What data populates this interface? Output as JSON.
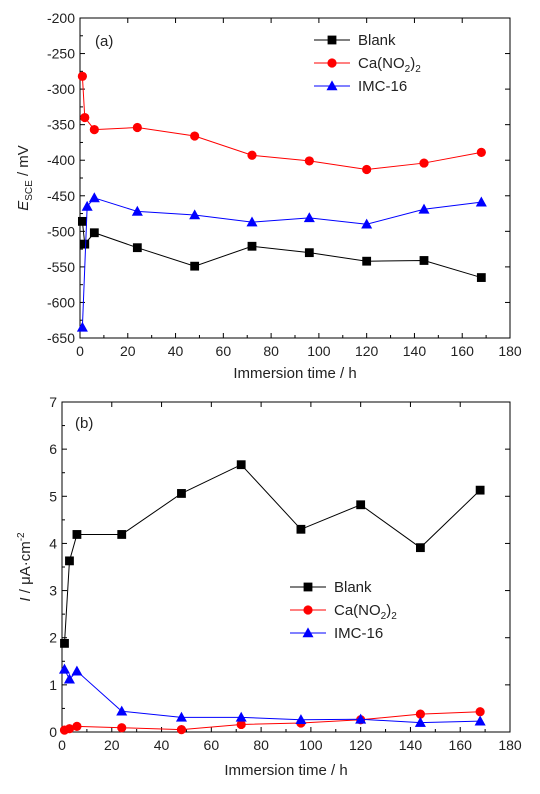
{
  "chart_data": [
    {
      "type": "line",
      "panel_label": "(a)",
      "xlabel": "Immersion time / h",
      "ylabel_main": "E",
      "ylabel_sub": "SCE",
      "ylabel_unit": " / mV",
      "xlim": [
        0,
        180
      ],
      "ylim": [
        -650,
        -200
      ],
      "xticks": [
        0,
        20,
        40,
        60,
        80,
        100,
        120,
        140,
        160,
        180
      ],
      "yticks": [
        -650,
        -600,
        -550,
        -500,
        -450,
        -400,
        -350,
        -300,
        -250,
        -200
      ],
      "legend_position": "top-right",
      "series": [
        {
          "name": "Blank",
          "name_main": "Blank",
          "name_sub": "",
          "name_tail": "",
          "color": "#000000",
          "marker": "square",
          "x": [
            1,
            2,
            6,
            24,
            48,
            72,
            96,
            120,
            144,
            168
          ],
          "y": [
            -486,
            -518,
            -502,
            -523,
            -549,
            -521,
            -530,
            -542,
            -541,
            -565
          ]
        },
        {
          "name": "Ca(NO2)2",
          "name_main": "Ca(NO",
          "name_sub": "2",
          "name_tail": ")",
          "name_tail_sub": "2",
          "color": "#ff0000",
          "marker": "circle",
          "x": [
            1,
            2,
            6,
            24,
            48,
            72,
            96,
            120,
            144,
            168
          ],
          "y": [
            -282,
            -340,
            -357,
            -354,
            -366,
            -393,
            -401,
            -413,
            -404,
            -389
          ]
        },
        {
          "name": "IMC-16",
          "name_main": "IMC-16",
          "name_sub": "",
          "name_tail": "",
          "color": "#0000ff",
          "marker": "triangle",
          "x": [
            1,
            3,
            6,
            24,
            48,
            72,
            96,
            120,
            144,
            168
          ],
          "y": [
            -635,
            -465,
            -453,
            -472,
            -477,
            -487,
            -481,
            -490,
            -469,
            -459
          ]
        }
      ]
    },
    {
      "type": "line",
      "panel_label": "(b)",
      "xlabel": "Immersion time / h",
      "ylabel_main": "I",
      "ylabel_unit": " / μA·cm",
      "ylabel_sup": "-2",
      "xlim": [
        0,
        180
      ],
      "ylim": [
        0,
        7
      ],
      "xticks": [
        0,
        20,
        40,
        60,
        80,
        100,
        120,
        140,
        160,
        180
      ],
      "yticks": [
        0,
        1,
        2,
        3,
        4,
        5,
        6,
        7
      ],
      "legend_position": "center-left",
      "series": [
        {
          "name": "Blank",
          "name_main": "Blank",
          "name_sub": "",
          "name_tail": "",
          "color": "#000000",
          "marker": "square",
          "x": [
            1,
            3,
            6,
            24,
            48,
            72,
            96,
            120,
            144,
            168
          ],
          "y": [
            1.88,
            3.63,
            4.19,
            4.19,
            5.06,
            5.67,
            4.3,
            4.82,
            3.91,
            5.13
          ]
        },
        {
          "name": "Ca(NO2)2",
          "name_main": "Ca(NO",
          "name_sub": "2",
          "name_tail": ")",
          "name_tail_sub": "2",
          "color": "#ff0000",
          "marker": "circle",
          "x": [
            1,
            3,
            6,
            24,
            48,
            72,
            96,
            120,
            144,
            168
          ],
          "y": [
            0.04,
            0.07,
            0.12,
            0.09,
            0.05,
            0.16,
            0.19,
            0.26,
            0.38,
            0.43
          ]
        },
        {
          "name": "IMC-16",
          "name_main": "IMC-16",
          "name_sub": "",
          "name_tail": "",
          "color": "#0000ff",
          "marker": "triangle",
          "x": [
            1,
            3,
            6,
            24,
            48,
            72,
            96,
            120,
            144,
            168
          ],
          "y": [
            1.33,
            1.12,
            1.29,
            0.44,
            0.31,
            0.31,
            0.26,
            0.27,
            0.2,
            0.23
          ]
        }
      ]
    }
  ]
}
